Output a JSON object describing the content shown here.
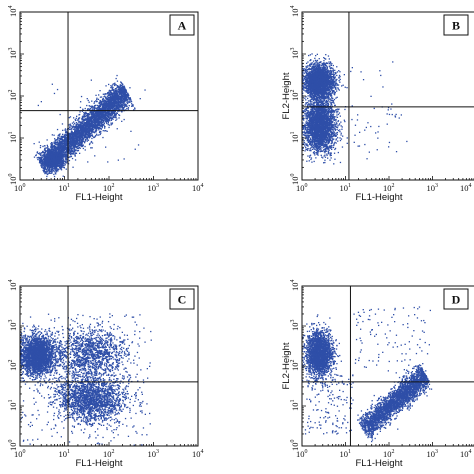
{
  "chart_data": [
    {
      "type": "scatter",
      "panel_label": "A",
      "xlabel": "FL1-Height",
      "ylabel": "",
      "xscale": "log",
      "yscale": "log",
      "xlim": [
        1,
        10000
      ],
      "ylim": [
        1,
        10000
      ],
      "x_ticks": [
        {
          "base": "10",
          "exp": "0"
        },
        {
          "base": "10",
          "exp": "1"
        },
        {
          "base": "10",
          "exp": "2"
        },
        {
          "base": "10",
          "exp": "3"
        },
        {
          "base": "10",
          "exp": "4"
        }
      ],
      "y_ticks": [
        {
          "base": "10",
          "exp": "0"
        },
        {
          "base": "10",
          "exp": "1"
        },
        {
          "base": "10",
          "exp": "2"
        },
        {
          "base": "10",
          "exp": "3"
        },
        {
          "base": "10",
          "exp": "4"
        }
      ],
      "gate": {
        "x": 12,
        "y": 45
      },
      "point_color": "#2f4fa8",
      "populations": [
        {
          "shape": "diagonal",
          "x_start": 3,
          "x_end": 250,
          "y_start": 2,
          "y_end": 130,
          "spread": 0.13,
          "count": 4200
        },
        {
          "shape": "blob",
          "x": 6,
          "y": 3,
          "sx": 0.12,
          "sy": 0.1,
          "count": 700
        },
        {
          "shape": "scatter",
          "x_range": [
            2,
            700
          ],
          "y_range": [
            2,
            200
          ],
          "count": 40
        }
      ]
    },
    {
      "type": "scatter",
      "panel_label": "B",
      "xlabel": "FL1-Height",
      "ylabel": "FL2-Height",
      "xscale": "log",
      "yscale": "log",
      "xlim": [
        1,
        10000
      ],
      "ylim": [
        1,
        10000
      ],
      "x_ticks": [
        {
          "base": "10",
          "exp": "0"
        },
        {
          "base": "10",
          "exp": "1"
        },
        {
          "base": "10",
          "exp": "2"
        },
        {
          "base": "10",
          "exp": "3"
        },
        {
          "base": "10",
          "exp": "4"
        }
      ],
      "y_ticks": [
        {
          "base": "10",
          "exp": "0"
        },
        {
          "base": "10",
          "exp": "1"
        },
        {
          "base": "10",
          "exp": "2"
        },
        {
          "base": "10",
          "exp": "3"
        },
        {
          "base": "10",
          "exp": "4"
        }
      ],
      "gate": {
        "x": 12,
        "y": 55
      },
      "point_color": "#2f4fa8",
      "populations": [
        {
          "shape": "blob",
          "x": 2.5,
          "y": 220,
          "sx": 0.17,
          "sy": 0.2,
          "count": 2600
        },
        {
          "shape": "blob",
          "x": 2.6,
          "y": 20,
          "sx": 0.18,
          "sy": 0.33,
          "count": 2600
        },
        {
          "shape": "diagonal",
          "x_start": 15,
          "x_end": 150,
          "y_start": 5,
          "y_end": 60,
          "spread": 0.18,
          "count": 30
        },
        {
          "shape": "scatter",
          "x_range": [
            2,
            300
          ],
          "y_range": [
            3,
            800
          ],
          "count": 30
        }
      ]
    },
    {
      "type": "scatter",
      "panel_label": "C",
      "xlabel": "FL1-Height",
      "ylabel": "",
      "xscale": "log",
      "yscale": "log",
      "xlim": [
        1,
        10000
      ],
      "ylim": [
        1,
        10000
      ],
      "x_ticks": [
        {
          "base": "10",
          "exp": "0"
        },
        {
          "base": "10",
          "exp": "1"
        },
        {
          "base": "10",
          "exp": "2"
        },
        {
          "base": "10",
          "exp": "3"
        },
        {
          "base": "10",
          "exp": "4"
        }
      ],
      "y_ticks": [
        {
          "base": "10",
          "exp": "0"
        },
        {
          "base": "10",
          "exp": "1"
        },
        {
          "base": "10",
          "exp": "2"
        },
        {
          "base": "10",
          "exp": "3"
        },
        {
          "base": "10",
          "exp": "4"
        }
      ],
      "gate": {
        "x": 12,
        "y": 40
      },
      "point_color": "#2f4fa8",
      "populations": [
        {
          "shape": "blob",
          "x": 2.5,
          "y": 180,
          "sx": 0.2,
          "sy": 0.25,
          "count": 2400
        },
        {
          "shape": "blob",
          "x": 40,
          "y": 15,
          "sx": 0.38,
          "sy": 0.3,
          "count": 1900
        },
        {
          "shape": "blob",
          "x": 40,
          "y": 200,
          "sx": 0.4,
          "sy": 0.32,
          "count": 1300
        },
        {
          "shape": "scatter",
          "x_range": [
            1,
            900
          ],
          "y_range": [
            1,
            2000
          ],
          "count": 300
        }
      ]
    },
    {
      "type": "scatter",
      "panel_label": "D",
      "xlabel": "FL1-Height",
      "ylabel": "FL2-Height",
      "xscale": "log",
      "yscale": "log",
      "xlim": [
        1,
        10000
      ],
      "ylim": [
        1,
        10000
      ],
      "x_ticks": [
        {
          "base": "10",
          "exp": "0"
        },
        {
          "base": "10",
          "exp": "1"
        },
        {
          "base": "10",
          "exp": "2"
        },
        {
          "base": "10",
          "exp": "3"
        },
        {
          "base": "10",
          "exp": "4"
        }
      ],
      "y_ticks": [
        {
          "base": "10",
          "exp": "0"
        },
        {
          "base": "10",
          "exp": "1"
        },
        {
          "base": "10",
          "exp": "2"
        },
        {
          "base": "10",
          "exp": "3"
        },
        {
          "base": "10",
          "exp": "4"
        }
      ],
      "gate": {
        "x": 13,
        "y": 40
      },
      "point_color": "#2f4fa8",
      "populations": [
        {
          "shape": "blob",
          "x": 2.5,
          "y": 200,
          "sx": 0.15,
          "sy": 0.28,
          "count": 2200
        },
        {
          "shape": "diagonal",
          "x_start": 25,
          "x_end": 700,
          "y_start": 2.5,
          "y_end": 60,
          "spread": 0.12,
          "count": 2600
        },
        {
          "shape": "scatter",
          "x_range": [
            15,
            900
          ],
          "y_range": [
            60,
            3000
          ],
          "count": 110
        },
        {
          "shape": "scatter",
          "x_range": [
            1.2,
            15
          ],
          "y_range": [
            2,
            60
          ],
          "count": 150
        }
      ]
    }
  ]
}
